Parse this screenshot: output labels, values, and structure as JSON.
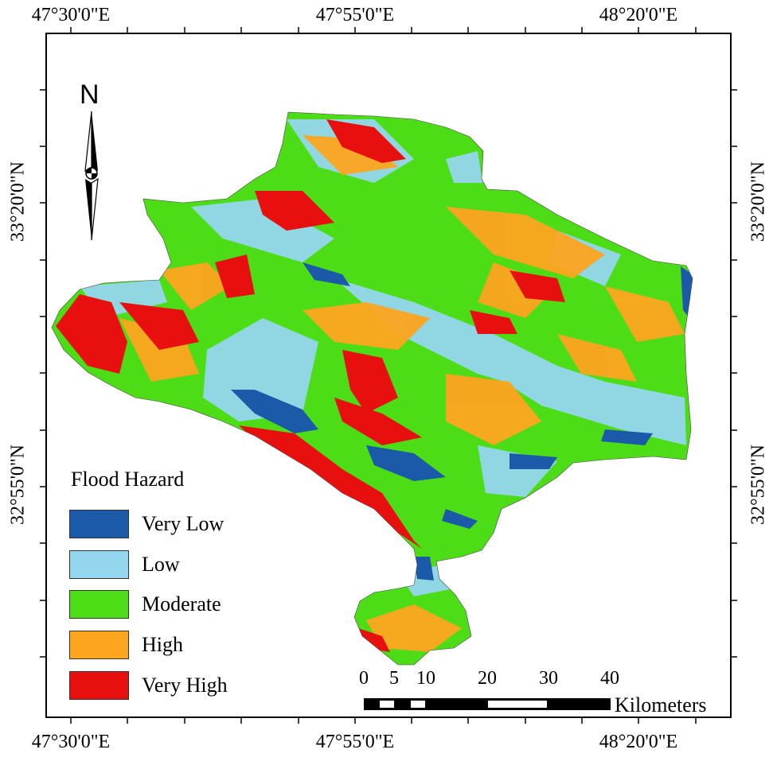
{
  "graticule": {
    "longitudes": [
      "47°30'0\"E",
      "47°55'0\"E",
      "48°20'0\"E"
    ],
    "latitudes": [
      "33°20'0\"N",
      "32°55'0\"N"
    ]
  },
  "north_arrow": {
    "letter": "N"
  },
  "legend": {
    "title": "Flood Hazard",
    "items": [
      {
        "label": "Very Low",
        "color": "#1b5aa8"
      },
      {
        "label": "Low",
        "color": "#94d6ee"
      },
      {
        "label": "Moderate",
        "color": "#4ddd17"
      },
      {
        "label": "High",
        "color": "#fda51f"
      },
      {
        "label": "Very High",
        "color": "#e80f0f"
      }
    ]
  },
  "scale_bar": {
    "ticks": [
      "0",
      "5",
      "10",
      "20",
      "30",
      "40"
    ],
    "unit": "Kilometers"
  }
}
